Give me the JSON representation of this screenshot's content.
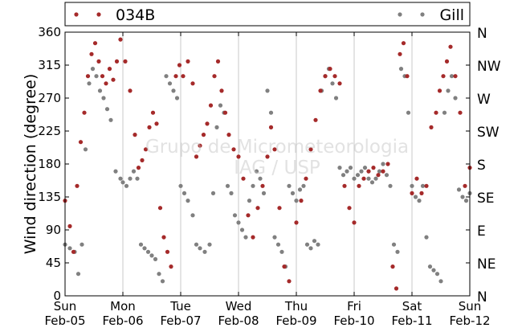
{
  "chart_data": {
    "type": "scatter",
    "title": "",
    "xlabel": "",
    "ylabel": "Wind direction (degree)",
    "ylim": [
      0,
      360
    ],
    "xlim": [
      "2017-02-05",
      "2017-02-12"
    ],
    "grid": "vertical day lines",
    "legend_position": "top, outside plot",
    "y_ticks": [
      "0",
      "45",
      "90",
      "135",
      "180",
      "225",
      "270",
      "315",
      "360"
    ],
    "y_tick_values": [
      0,
      45,
      90,
      135,
      180,
      225,
      270,
      315,
      360
    ],
    "y2_ticks": [
      "N",
      "NE",
      "E",
      "SE",
      "S",
      "SW",
      "W",
      "NW",
      "N"
    ],
    "x_ticks": [
      {
        "day": "Sun",
        "date": "Feb-05"
      },
      {
        "day": "Mon",
        "date": "Feb-06"
      },
      {
        "day": "Tue",
        "date": "Feb-07"
      },
      {
        "day": "Wed",
        "date": "Feb-08"
      },
      {
        "day": "Thu",
        "date": "Feb-09"
      },
      {
        "day": "Fri",
        "date": "Feb-10"
      },
      {
        "day": "Sat",
        "date": "Feb-11"
      },
      {
        "day": "Sun",
        "date": "Feb-12"
      }
    ],
    "watermark": [
      "Grupo de Micrometeorologia",
      "IAG / USP"
    ],
    "series": [
      {
        "name": "034B",
        "color": "#a52a2a",
        "points": [
          [
            "2017-02-05 00:00",
            130
          ],
          [
            "2017-02-05 02:00",
            95
          ],
          [
            "2017-02-05 03:30",
            60
          ],
          [
            "2017-02-05 05:00",
            150
          ],
          [
            "2017-02-05 06:30",
            210
          ],
          [
            "2017-02-05 08:00",
            250
          ],
          [
            "2017-02-05 09:30",
            300
          ],
          [
            "2017-02-05 11:00",
            330
          ],
          [
            "2017-02-05 12:30",
            345
          ],
          [
            "2017-02-05 14:00",
            320
          ],
          [
            "2017-02-05 15:30",
            300
          ],
          [
            "2017-02-05 17:00",
            290
          ],
          [
            "2017-02-05 18:30",
            310
          ],
          [
            "2017-02-05 20:00",
            295
          ],
          [
            "2017-02-05 21:30",
            320
          ],
          [
            "2017-02-05 23:00",
            350
          ],
          [
            "2017-02-06 01:00",
            320
          ],
          [
            "2017-02-06 03:00",
            280
          ],
          [
            "2017-02-06 05:00",
            220
          ],
          [
            "2017-02-06 06:30",
            175
          ],
          [
            "2017-02-06 08:00",
            185
          ],
          [
            "2017-02-06 09:30",
            200
          ],
          [
            "2017-02-06 11:00",
            230
          ],
          [
            "2017-02-06 12:30",
            250
          ],
          [
            "2017-02-06 14:00",
            235
          ],
          [
            "2017-02-06 15:30",
            120
          ],
          [
            "2017-02-06 17:00",
            80
          ],
          [
            "2017-02-06 18:30",
            60
          ],
          [
            "2017-02-06 20:00",
            40
          ],
          [
            "2017-02-06 22:00",
            300
          ],
          [
            "2017-02-06 23:30",
            315
          ],
          [
            "2017-02-07 01:00",
            300
          ],
          [
            "2017-02-07 03:00",
            320
          ],
          [
            "2017-02-07 05:00",
            290
          ],
          [
            "2017-02-07 06:30",
            190
          ],
          [
            "2017-02-07 08:00",
            205
          ],
          [
            "2017-02-07 09:30",
            220
          ],
          [
            "2017-02-07 11:00",
            235
          ],
          [
            "2017-02-07 12:30",
            260
          ],
          [
            "2017-02-07 14:00",
            300
          ],
          [
            "2017-02-07 15:30",
            320
          ],
          [
            "2017-02-07 17:00",
            280
          ],
          [
            "2017-02-07 18:30",
            250
          ],
          [
            "2017-02-07 20:00",
            220
          ],
          [
            "2017-02-07 22:00",
            200
          ],
          [
            "2017-02-08 00:00",
            190
          ],
          [
            "2017-02-08 02:00",
            160
          ],
          [
            "2017-02-08 04:00",
            110
          ],
          [
            "2017-02-08 06:00",
            80
          ],
          [
            "2017-02-08 08:00",
            120
          ],
          [
            "2017-02-08 10:00",
            150
          ],
          [
            "2017-02-08 12:00",
            190
          ],
          [
            "2017-02-08 13:30",
            230
          ],
          [
            "2017-02-08 15:00",
            200
          ],
          [
            "2017-02-08 17:00",
            120
          ],
          [
            "2017-02-08 19:00",
            40
          ],
          [
            "2017-02-08 21:00",
            20
          ],
          [
            "2017-02-09 00:00",
            100
          ],
          [
            "2017-02-09 02:00",
            130
          ],
          [
            "2017-02-09 04:00",
            160
          ],
          [
            "2017-02-09 06:00",
            200
          ],
          [
            "2017-02-09 08:00",
            240
          ],
          [
            "2017-02-09 10:00",
            280
          ],
          [
            "2017-02-09 12:00",
            300
          ],
          [
            "2017-02-09 14:00",
            310
          ],
          [
            "2017-02-09 16:00",
            300
          ],
          [
            "2017-02-09 18:00",
            290
          ],
          [
            "2017-02-09 20:00",
            150
          ],
          [
            "2017-02-09 22:00",
            120
          ],
          [
            "2017-02-10 00:00",
            100
          ],
          [
            "2017-02-10 02:00",
            150
          ],
          [
            "2017-02-10 04:00",
            160
          ],
          [
            "2017-02-10 06:00",
            170
          ],
          [
            "2017-02-10 08:00",
            175
          ],
          [
            "2017-02-10 10:00",
            165
          ],
          [
            "2017-02-10 12:00",
            170
          ],
          [
            "2017-02-10 14:00",
            180
          ],
          [
            "2017-02-10 16:00",
            40
          ],
          [
            "2017-02-10 17:30",
            10
          ],
          [
            "2017-02-10 19:00",
            330
          ],
          [
            "2017-02-10 20:30",
            345
          ],
          [
            "2017-02-10 22:00",
            300
          ],
          [
            "2017-02-11 00:00",
            140
          ],
          [
            "2017-02-11 02:00",
            160
          ],
          [
            "2017-02-11 04:00",
            140
          ],
          [
            "2017-02-11 06:00",
            150
          ],
          [
            "2017-02-11 08:00",
            230
          ],
          [
            "2017-02-11 10:00",
            250
          ],
          [
            "2017-02-11 11:30",
            280
          ],
          [
            "2017-02-11 13:00",
            300
          ],
          [
            "2017-02-11 14:30",
            320
          ],
          [
            "2017-02-11 16:00",
            340
          ],
          [
            "2017-02-11 18:00",
            300
          ],
          [
            "2017-02-11 20:00",
            250
          ],
          [
            "2017-02-11 22:00",
            150
          ],
          [
            "2017-02-12 00:00",
            175
          ],
          [
            "2017-02-12 00:30",
            185
          ]
        ]
      },
      {
        "name": "Gill",
        "color": "#808080",
        "points": [
          [
            "2017-02-05 00:00",
            70
          ],
          [
            "2017-02-05 02:00",
            65
          ],
          [
            "2017-02-05 04:00",
            60
          ],
          [
            "2017-02-05 05:30",
            30
          ],
          [
            "2017-02-05 07:00",
            70
          ],
          [
            "2017-02-05 08:30",
            200
          ],
          [
            "2017-02-05 10:00",
            290
          ],
          [
            "2017-02-05 11:30",
            310
          ],
          [
            "2017-02-05 13:00",
            300
          ],
          [
            "2017-02-05 14:30",
            280
          ],
          [
            "2017-02-05 16:00",
            270
          ],
          [
            "2017-02-05 17:30",
            255
          ],
          [
            "2017-02-05 19:00",
            240
          ],
          [
            "2017-02-05 21:00",
            170
          ],
          [
            "2017-02-05 23:00",
            160
          ],
          [
            "2017-02-06 00:00",
            155
          ],
          [
            "2017-02-06 01:30",
            150
          ],
          [
            "2017-02-06 03:00",
            160
          ],
          [
            "2017-02-06 04:30",
            170
          ],
          [
            "2017-02-06 06:00",
            160
          ],
          [
            "2017-02-06 07:30",
            70
          ],
          [
            "2017-02-06 09:00",
            65
          ],
          [
            "2017-02-06 10:30",
            60
          ],
          [
            "2017-02-06 12:00",
            55
          ],
          [
            "2017-02-06 13:30",
            50
          ],
          [
            "2017-02-06 15:00",
            30
          ],
          [
            "2017-02-06 16:30",
            20
          ],
          [
            "2017-02-06 18:00",
            300
          ],
          [
            "2017-02-06 19:30",
            290
          ],
          [
            "2017-02-06 21:00",
            280
          ],
          [
            "2017-02-06 22:30",
            270
          ],
          [
            "2017-02-07 00:00",
            150
          ],
          [
            "2017-02-07 01:30",
            140
          ],
          [
            "2017-02-07 03:00",
            130
          ],
          [
            "2017-02-07 05:00",
            110
          ],
          [
            "2017-02-07 06:30",
            70
          ],
          [
            "2017-02-07 08:00",
            65
          ],
          [
            "2017-02-07 10:00",
            60
          ],
          [
            "2017-02-07 12:00",
            70
          ],
          [
            "2017-02-07 13:30",
            140
          ],
          [
            "2017-02-07 15:00",
            230
          ],
          [
            "2017-02-07 16:30",
            260
          ],
          [
            "2017-02-07 18:00",
            250
          ],
          [
            "2017-02-07 19:30",
            150
          ],
          [
            "2017-02-07 21:00",
            140
          ],
          [
            "2017-02-07 22:30",
            110
          ],
          [
            "2017-02-08 00:00",
            100
          ],
          [
            "2017-02-08 01:30",
            90
          ],
          [
            "2017-02-08 03:00",
            80
          ],
          [
            "2017-02-08 04:30",
            130
          ],
          [
            "2017-02-08 06:00",
            150
          ],
          [
            "2017-02-08 07:30",
            170
          ],
          [
            "2017-02-08 09:00",
            160
          ],
          [
            "2017-02-08 10:30",
            140
          ],
          [
            "2017-02-08 12:00",
            280
          ],
          [
            "2017-02-08 13:30",
            250
          ],
          [
            "2017-02-08 15:00",
            80
          ],
          [
            "2017-02-08 16:30",
            70
          ],
          [
            "2017-02-08 18:00",
            60
          ],
          [
            "2017-02-08 19:30",
            40
          ],
          [
            "2017-02-08 21:00",
            150
          ],
          [
            "2017-02-08 22:30",
            140
          ],
          [
            "2017-02-09 00:00",
            130
          ],
          [
            "2017-02-09 01:30",
            145
          ],
          [
            "2017-02-09 03:00",
            150
          ],
          [
            "2017-02-09 04:30",
            70
          ],
          [
            "2017-02-09 06:00",
            65
          ],
          [
            "2017-02-09 07:30",
            75
          ],
          [
            "2017-02-09 09:00",
            70
          ],
          [
            "2017-02-09 10:30",
            280
          ],
          [
            "2017-02-09 12:00",
            300
          ],
          [
            "2017-02-09 13:30",
            310
          ],
          [
            "2017-02-09 15:00",
            290
          ],
          [
            "2017-02-09 16:30",
            270
          ],
          [
            "2017-02-09 18:00",
            175
          ],
          [
            "2017-02-09 19:30",
            165
          ],
          [
            "2017-02-09 21:00",
            170
          ],
          [
            "2017-02-09 22:30",
            175
          ],
          [
            "2017-02-10 00:00",
            160
          ],
          [
            "2017-02-10 01:30",
            165
          ],
          [
            "2017-02-10 03:00",
            170
          ],
          [
            "2017-02-10 04:30",
            175
          ],
          [
            "2017-02-10 06:00",
            160
          ],
          [
            "2017-02-10 07:30",
            155
          ],
          [
            "2017-02-10 09:00",
            160
          ],
          [
            "2017-02-10 10:30",
            170
          ],
          [
            "2017-02-10 12:00",
            180
          ],
          [
            "2017-02-10 13:30",
            165
          ],
          [
            "2017-02-10 15:00",
            150
          ],
          [
            "2017-02-10 16:30",
            70
          ],
          [
            "2017-02-10 18:00",
            60
          ],
          [
            "2017-02-10 19:30",
            310
          ],
          [
            "2017-02-10 21:00",
            300
          ],
          [
            "2017-02-10 22:30",
            250
          ],
          [
            "2017-02-11 00:00",
            150
          ],
          [
            "2017-02-11 01:30",
            135
          ],
          [
            "2017-02-11 03:00",
            130
          ],
          [
            "2017-02-11 04:30",
            150
          ],
          [
            "2017-02-11 06:00",
            80
          ],
          [
            "2017-02-11 07:30",
            40
          ],
          [
            "2017-02-11 09:00",
            35
          ],
          [
            "2017-02-11 10:30",
            30
          ],
          [
            "2017-02-11 12:00",
            20
          ],
          [
            "2017-02-11 13:30",
            250
          ],
          [
            "2017-02-11 15:00",
            280
          ],
          [
            "2017-02-11 16:30",
            300
          ],
          [
            "2017-02-11 18:00",
            270
          ],
          [
            "2017-02-11 19:30",
            145
          ],
          [
            "2017-02-11 21:00",
            135
          ],
          [
            "2017-02-11 22:30",
            130
          ],
          [
            "2017-02-12 00:00",
            140
          ],
          [
            "2017-02-12 01:00",
            150
          ]
        ]
      }
    ]
  }
}
